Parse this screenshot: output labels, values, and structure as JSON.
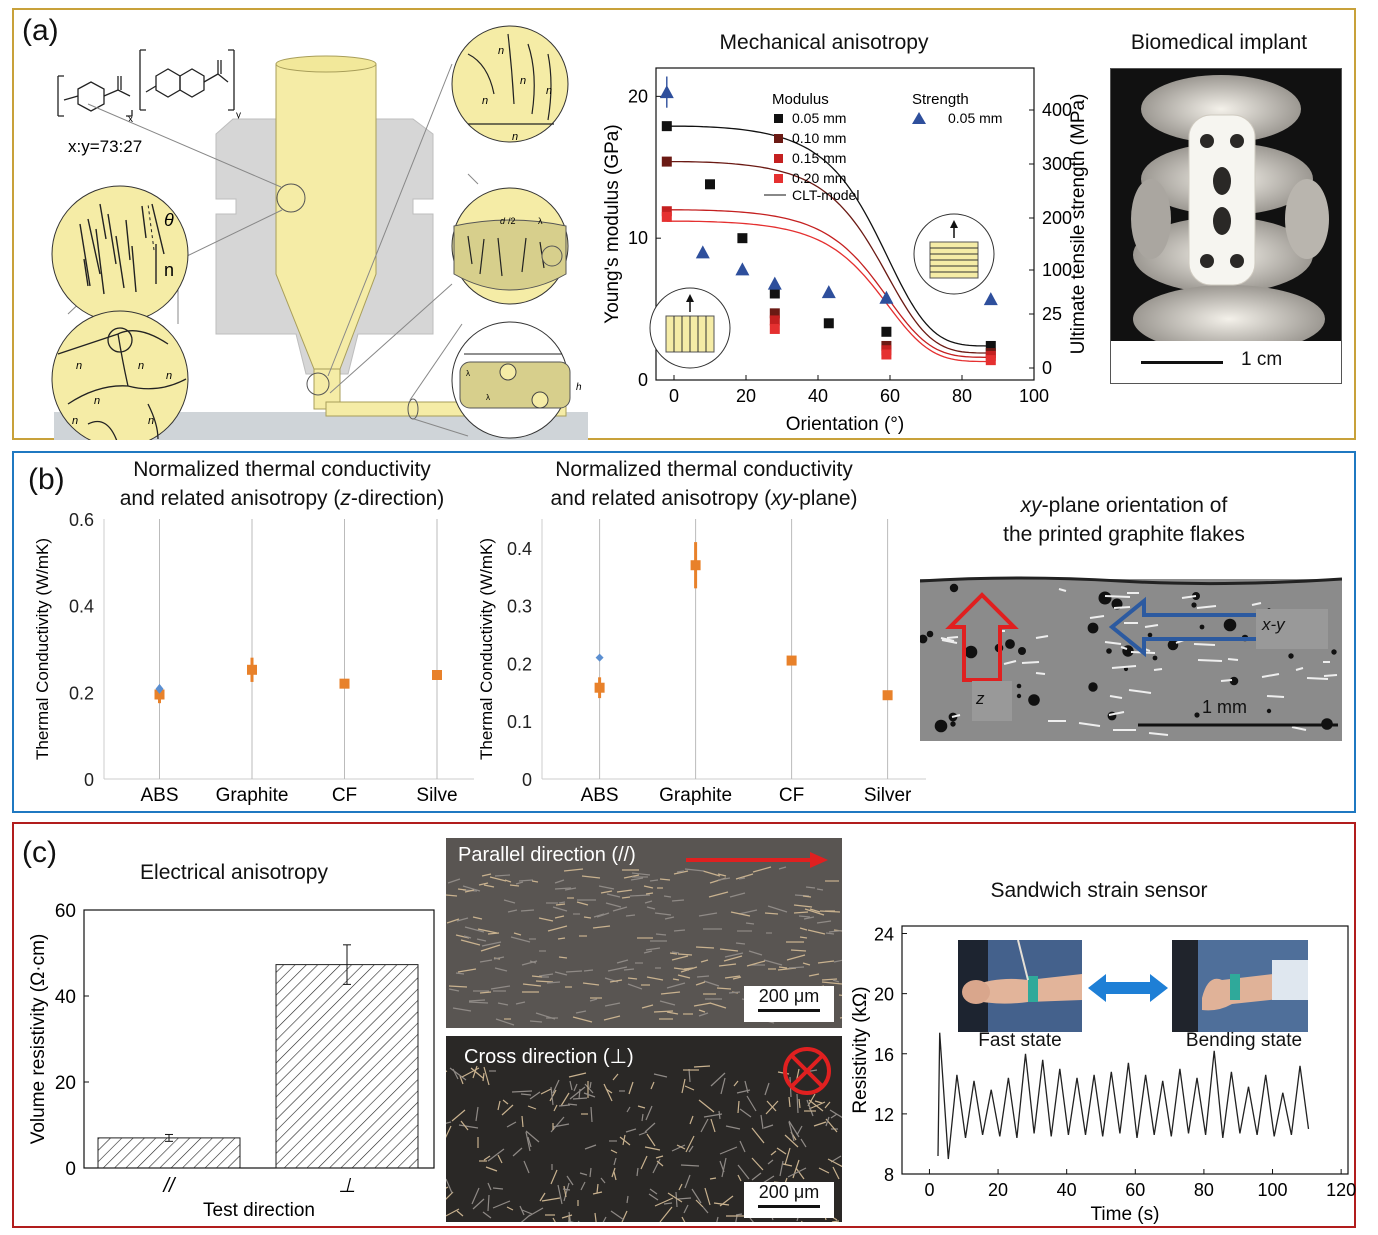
{
  "panel_a": {
    "label": "(a)",
    "ratio": "x:y=73:27",
    "chem_x": "x",
    "chem_y": "y",
    "zoom_top_n": "n",
    "zoom_mid_labels": [
      "d",
      "N",
      "/2",
      "λ",
      "N"
    ],
    "zoom_bot_labels": [
      "λ",
      "A",
      "λ",
      "H",
      "h"
    ],
    "left_circle_theta": "θ",
    "left_circle_n": "n",
    "domain_n": "n",
    "mech_title": "Mechanical anisotropy",
    "implant_title": "Biomedical implant",
    "scale_implant": "1 cm"
  },
  "panel_b": {
    "label": "(b)",
    "title1_l1": "Normalized thermal conductivity",
    "title1_l2_pre": "and related anisotropy (",
    "title1_l2_it": "z",
    "title1_l2_post": "-direction)",
    "title2_l1": "Normalized thermal conductivity",
    "title2_l2_pre": "and related anisotropy (",
    "title2_l2_it": "xy",
    "title2_l2_post": "-plane)",
    "title3_l1_it": "xy",
    "title3_l1_post": "-plane orientation of",
    "title3_l2": "the printed graphite flakes",
    "arrow_xy": "x-y",
    "arrow_z": "z",
    "scale": "1 mm"
  },
  "panel_c": {
    "label": "(c)",
    "title_left": "Electrical anisotropy",
    "parallel": "Parallel direction (//)",
    "cross": "Cross direction (⊥)",
    "scale": "200 μm",
    "title_right": "Sandwich strain sensor",
    "fast_state": "Fast state",
    "bending_state": "Bending state"
  },
  "colors": {
    "panel_a_border": "#c8a13a",
    "panel_b_border": "#1f78c1",
    "panel_c_border": "#b11d1d",
    "strength_marker": "#2e4f9c",
    "thermal_marker": "#e8812a",
    "arrow_red": "#e02020",
    "arrow_blue": "#2c5aa0",
    "nozzle_fill": "#f5eca6"
  },
  "chart_data": [
    {
      "id": "mechanical",
      "type": "scatter",
      "title": "Mechanical anisotropy",
      "xlabel": "Orientation (°)",
      "ylabel": "Young's modulus (GPa)",
      "ylabel_right": "Ultimate tensile strength (MPa)",
      "xlim": [
        -5,
        100
      ],
      "ylim": [
        0,
        22
      ],
      "xticks": [
        0,
        20,
        40,
        60,
        80,
        100
      ],
      "yticks": [
        0,
        10,
        20
      ],
      "yticks_right": [
        "0",
        "25",
        "100",
        "200",
        "300",
        "400"
      ],
      "legend_title_modulus": "Modulus",
      "legend_title_strength": "Strength",
      "series": [
        {
          "name": "0.05 mm",
          "group": "Modulus",
          "color": "#111111",
          "x": [
            -2,
            10,
            19,
            28,
            43,
            59,
            88
          ],
          "y": [
            17.9,
            13.8,
            10.0,
            6.1,
            4.0,
            3.4,
            2.4
          ]
        },
        {
          "name": "0.10 mm",
          "group": "Modulus",
          "color": "#6b1a14",
          "x": [
            -2,
            28,
            59,
            88
          ],
          "y": [
            15.4,
            4.7,
            2.4,
            1.9
          ]
        },
        {
          "name": "0.15 mm",
          "group": "Modulus",
          "color": "#c42020",
          "x": [
            -2,
            28,
            59,
            88
          ],
          "y": [
            11.9,
            4.2,
            2.1,
            1.7
          ]
        },
        {
          "name": "0.20 mm",
          "group": "Modulus",
          "color": "#e53030",
          "x": [
            -2,
            28,
            59,
            88
          ],
          "y": [
            11.5,
            3.6,
            1.8,
            1.4
          ]
        },
        {
          "name": "0.05 mm",
          "group": "Strength",
          "color": "#2e4f9c",
          "x": [
            -2,
            8,
            19,
            28,
            43,
            59,
            88
          ],
          "y": [
            20.3,
            9.0,
            7.8,
            6.8,
            6.2,
            5.8,
            5.7
          ]
        }
      ],
      "model_legend": "CLT-model",
      "model_curves": [
        {
          "color": "#111111",
          "top": 17.9,
          "bottom": 2.4
        },
        {
          "color": "#6b1a14",
          "top": 15.4,
          "bottom": 1.9
        },
        {
          "color": "#c42020",
          "top": 12.0,
          "bottom": 1.6
        },
        {
          "color": "#e53030",
          "top": 11.2,
          "bottom": 1.3
        }
      ]
    },
    {
      "id": "thermal_z",
      "type": "scatter",
      "ylabel": "Thermal Conductivity (W/mK)",
      "categories": [
        "ABS",
        "Graphite",
        "CF",
        "Silve"
      ],
      "ylim": [
        0,
        0.6
      ],
      "yticks": [
        "0",
        "0.2",
        "0.4",
        "0.6"
      ],
      "values": [
        0.195,
        0.252,
        0.22,
        0.24
      ],
      "errors": [
        0.02,
        0.028,
        0.008,
        0.01
      ]
    },
    {
      "id": "thermal_xy",
      "type": "scatter",
      "ylabel": "Thermal Conductivity (W/mK)",
      "categories": [
        "ABS",
        "Graphite",
        "CF",
        "Silver"
      ],
      "ylim": [
        0,
        0.45
      ],
      "yticks": [
        "0",
        "0.1",
        "0.2",
        "0.3",
        "0.4"
      ],
      "values": [
        0.158,
        0.37,
        0.205,
        0.145
      ],
      "errors": [
        0.018,
        0.04,
        0.006,
        0.008
      ]
    },
    {
      "id": "resistivity",
      "type": "bar",
      "xlabel": "Test direction",
      "ylabel": "Volume resistivity (Ω·cm)",
      "categories": [
        "//",
        "⊥"
      ],
      "values": [
        7,
        47.3
      ],
      "errors": [
        0.8,
        4.6
      ],
      "ylim": [
        0,
        60
      ],
      "yticks": [
        "0",
        "20",
        "40",
        "60"
      ]
    },
    {
      "id": "strain",
      "type": "line",
      "xlabel": "Time (s)",
      "ylabel": "Resistivity (kΩ)",
      "xlim": [
        -8,
        122
      ],
      "ylim": [
        8,
        24.5
      ],
      "xticks": [
        "0",
        "20",
        "40",
        "60",
        "80",
        "100",
        "120"
      ],
      "yticks": [
        "8",
        "12",
        "16",
        "20",
        "24"
      ],
      "cycle_times": [
        3,
        8,
        13,
        18,
        23,
        28,
        33,
        38,
        43,
        48,
        53,
        58,
        63,
        68,
        73,
        78,
        83,
        88,
        93,
        98,
        103,
        108
      ],
      "peaks": [
        17.4,
        14.6,
        14.2,
        13.6,
        14.4,
        16.0,
        15.6,
        15.0,
        14.4,
        14.6,
        14.8,
        15.4,
        14.6,
        14.2,
        15.0,
        14.4,
        16.2,
        14.8,
        13.8,
        14.6,
        13.4,
        15.2
      ],
      "troughs": [
        9.0,
        10.4,
        10.6,
        10.5,
        10.4,
        10.7,
        10.5,
        10.6,
        10.6,
        10.5,
        10.7,
        10.4,
        10.6,
        10.5,
        10.7,
        10.6,
        10.4,
        10.7,
        10.6,
        10.5,
        10.6,
        11.0
      ]
    }
  ]
}
